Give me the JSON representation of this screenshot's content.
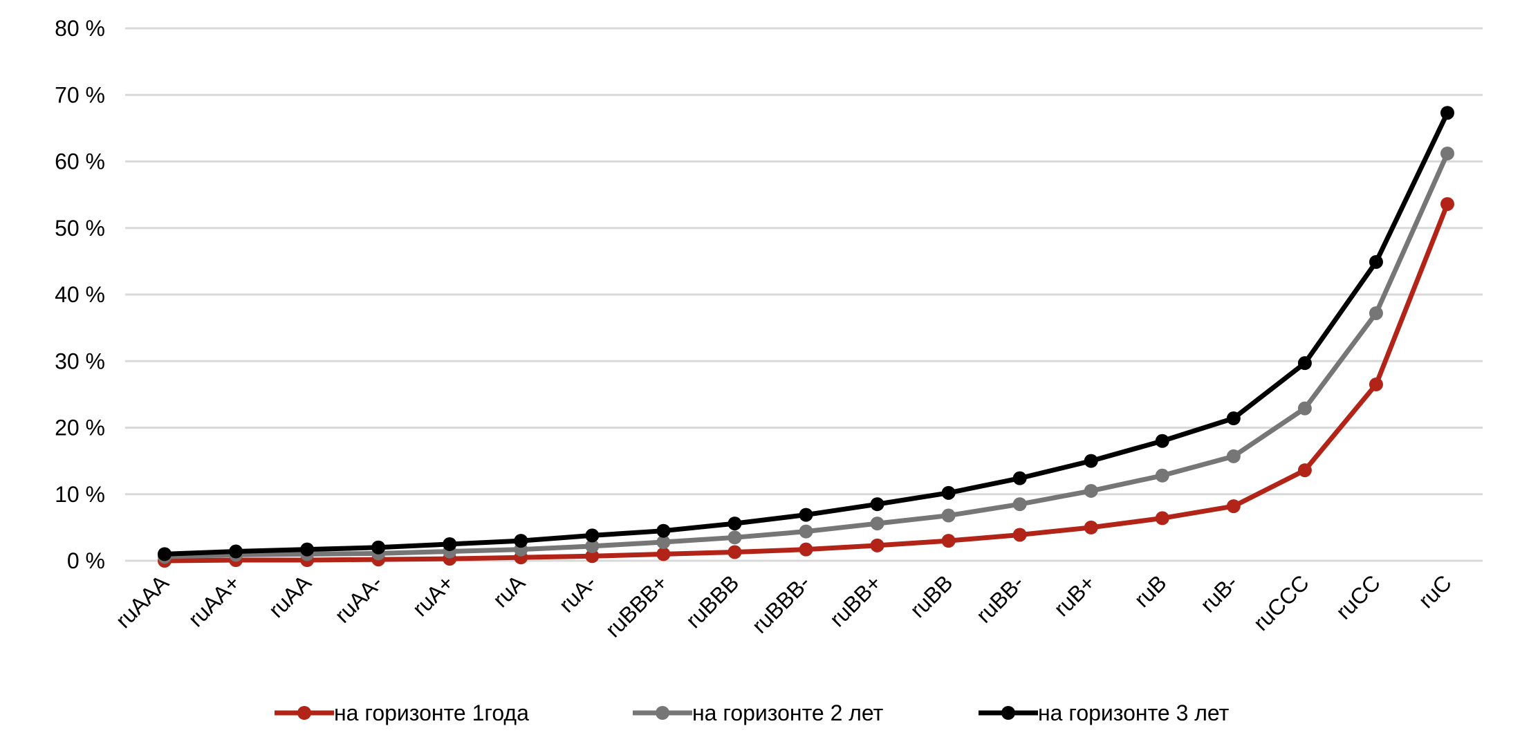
{
  "chart_data": {
    "type": "line",
    "title": "",
    "xlabel": "",
    "ylabel": "",
    "ylim": [
      0,
      80
    ],
    "yticks": [
      "0 %",
      "10 %",
      "20 %",
      "30 %",
      "40 %",
      "50 %",
      "60 %",
      "70 %",
      "80 %"
    ],
    "grid": true,
    "legend_position": "bottom",
    "categories": [
      "ruAAA",
      "ruAA+",
      "ruAA",
      "ruAA-",
      "ruA+",
      "ruA",
      "ruA-",
      "ruBBB+",
      "ruBBB",
      "ruBBB-",
      "ruBB+",
      "ruBB",
      "ruBB-",
      "ruB+",
      "ruB",
      "ruB-",
      "ruCCC",
      "ruCC",
      "ruC"
    ],
    "series": [
      {
        "name": "на горизонте 1года",
        "color": "#b22418",
        "values": [
          0.0,
          0.1,
          0.1,
          0.2,
          0.3,
          0.5,
          0.7,
          1.0,
          1.3,
          1.7,
          2.3,
          3.0,
          3.9,
          5.0,
          6.4,
          8.2,
          13.6,
          26.5,
          53.6
        ]
      },
      {
        "name": "на горизонте 2 лет",
        "color": "#767676",
        "values": [
          0.6,
          0.9,
          1.0,
          1.1,
          1.4,
          1.7,
          2.2,
          2.8,
          3.5,
          4.4,
          5.6,
          6.8,
          8.5,
          10.5,
          12.8,
          15.7,
          22.9,
          37.2,
          61.2
        ]
      },
      {
        "name": "на горизонте 3 лет",
        "color": "#000000",
        "values": [
          1.0,
          1.4,
          1.7,
          2.0,
          2.5,
          3.0,
          3.8,
          4.5,
          5.6,
          6.9,
          8.5,
          10.2,
          12.4,
          15.0,
          18.0,
          21.4,
          29.7,
          44.9,
          67.3
        ]
      }
    ]
  }
}
